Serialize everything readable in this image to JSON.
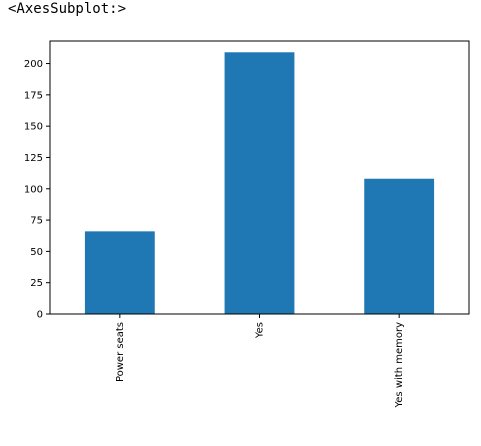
{
  "output_repr": "<AxesSubplot:>",
  "chart_data": {
    "type": "bar",
    "categories": [
      "Power seats",
      "Yes",
      "Yes with memory"
    ],
    "values": [
      66,
      209,
      108
    ],
    "ylim": [
      0,
      218
    ],
    "yticks": [
      0,
      25,
      50,
      75,
      100,
      125,
      150,
      175,
      200
    ],
    "title": "",
    "xlabel": "",
    "ylabel": "",
    "bar_color": "#1f77b4",
    "grid": false,
    "legend": "none"
  }
}
